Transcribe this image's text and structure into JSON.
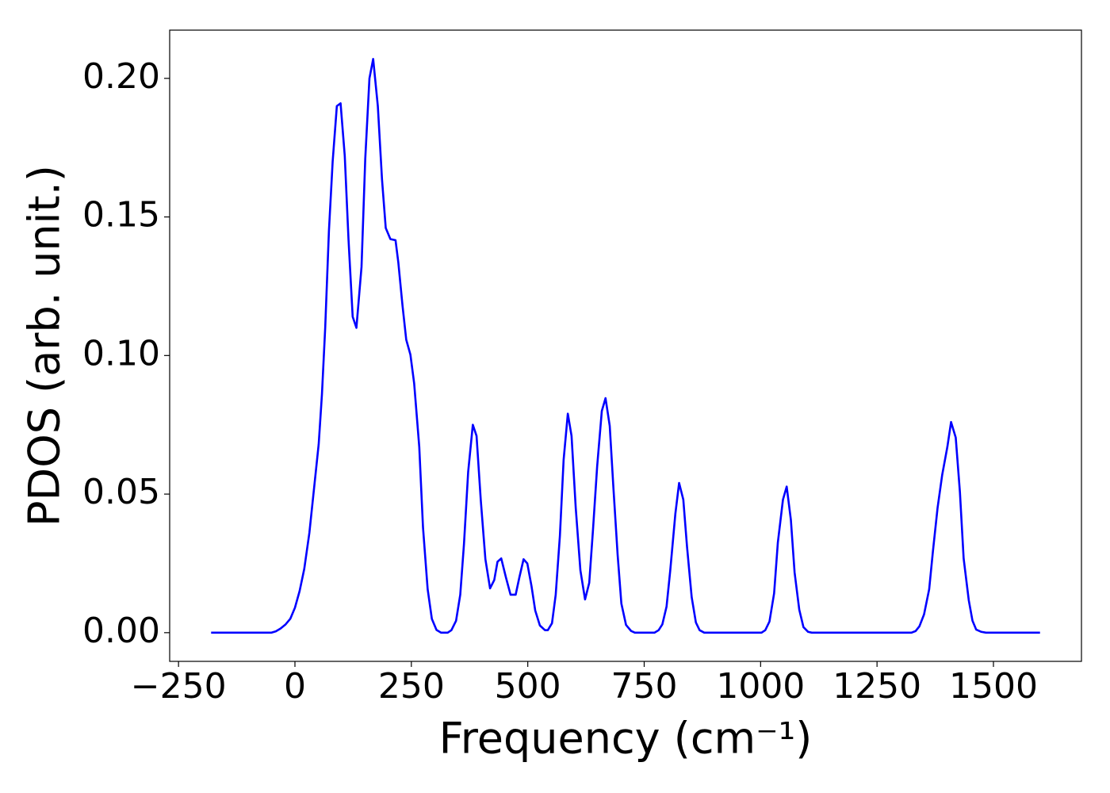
{
  "chart_data": {
    "type": "line",
    "xlabel": "Frequency (cm⁻¹)",
    "ylabel": "PDOS (arb. unit.)",
    "xlim": [
      -269,
      1689
    ],
    "ylim": [
      -0.01035,
      0.2174
    ],
    "xticks": [
      {
        "value": -250,
        "label": "−250"
      },
      0,
      250,
      500,
      750,
      1000,
      1250,
      1500
    ],
    "yticks": [
      {
        "value": 0,
        "label": "0.00"
      },
      {
        "value": 0.05,
        "label": "0.05"
      },
      {
        "value": 0.1,
        "label": "0.10"
      },
      {
        "value": 0.15,
        "label": "0.15"
      },
      {
        "value": 0.2,
        "label": "0.20"
      }
    ],
    "grid": false,
    "x": [
      -180,
      -51,
      -41,
      -31,
      -20,
      -10,
      0,
      10,
      20,
      31,
      41,
      51,
      58,
      65,
      73,
      81,
      90,
      98,
      107,
      115,
      124,
      132,
      143,
      151,
      160,
      168,
      178,
      187,
      195,
      205,
      216,
      222,
      231,
      239,
      248,
      256,
      267,
      275,
      285,
      294,
      304,
      314,
      328,
      336,
      346,
      355,
      363,
      372,
      382,
      390,
      399,
      409,
      419,
      428,
      435,
      443,
      453,
      463,
      474,
      482,
      491,
      499,
      508,
      516,
      526,
      537,
      543,
      552,
      560,
      569,
      577,
      586,
      594,
      603,
      613,
      623,
      632,
      640,
      649,
      659,
      667,
      676,
      684,
      693,
      701,
      711,
      722,
      730,
      772,
      781,
      789,
      798,
      806,
      817,
      825,
      834,
      842,
      852,
      861,
      869,
      879,
      1002,
      1010,
      1019,
      1029,
      1037,
      1048,
      1056,
      1065,
      1073,
      1083,
      1092,
      1102,
      1110,
      1324,
      1333,
      1341,
      1351,
      1362,
      1370,
      1380,
      1390,
      1401,
      1409,
      1419,
      1428,
      1436,
      1447,
      1455,
      1463,
      1474,
      1484,
      1600
    ],
    "series": [
      {
        "name": "PDOS",
        "color": "#0000ff",
        "values": [
          0,
          0,
          0.0005,
          0.0015,
          0.003,
          0.005,
          0.009,
          0.015,
          0.023,
          0.036,
          0.052,
          0.068,
          0.086,
          0.11,
          0.145,
          0.17,
          0.19,
          0.191,
          0.172,
          0.142,
          0.114,
          0.11,
          0.132,
          0.171,
          0.2,
          0.207,
          0.19,
          0.1635,
          0.146,
          0.142,
          0.1416,
          0.1336,
          0.118,
          0.1057,
          0.1003,
          0.09,
          0.067,
          0.038,
          0.0157,
          0.005,
          0.001,
          0,
          0,
          0.0009,
          0.0043,
          0.0137,
          0.032,
          0.058,
          0.075,
          0.071,
          0.048,
          0.0265,
          0.016,
          0.019,
          0.0256,
          0.0268,
          0.02,
          0.0137,
          0.0137,
          0.02,
          0.0265,
          0.025,
          0.0168,
          0.008,
          0.0026,
          0.0009,
          0.0009,
          0.0034,
          0.0137,
          0.035,
          0.0624,
          0.079,
          0.071,
          0.045,
          0.0225,
          0.012,
          0.018,
          0.037,
          0.06,
          0.08,
          0.0846,
          0.0746,
          0.052,
          0.028,
          0.0105,
          0.0028,
          0.0006,
          0,
          0,
          0.0009,
          0.003,
          0.0094,
          0.0225,
          0.043,
          0.054,
          0.048,
          0.031,
          0.0128,
          0.0037,
          0.0009,
          0,
          0,
          0.0009,
          0.004,
          0.0142,
          0.0325,
          0.048,
          0.0527,
          0.0407,
          0.0217,
          0.0083,
          0.002,
          0.0003,
          0,
          0,
          0.0006,
          0.0023,
          0.0066,
          0.0157,
          0.0293,
          0.045,
          0.057,
          0.067,
          0.076,
          0.0704,
          0.0507,
          0.0268,
          0.0117,
          0.0043,
          0.0011,
          0.0003,
          0,
          0
        ]
      }
    ]
  }
}
